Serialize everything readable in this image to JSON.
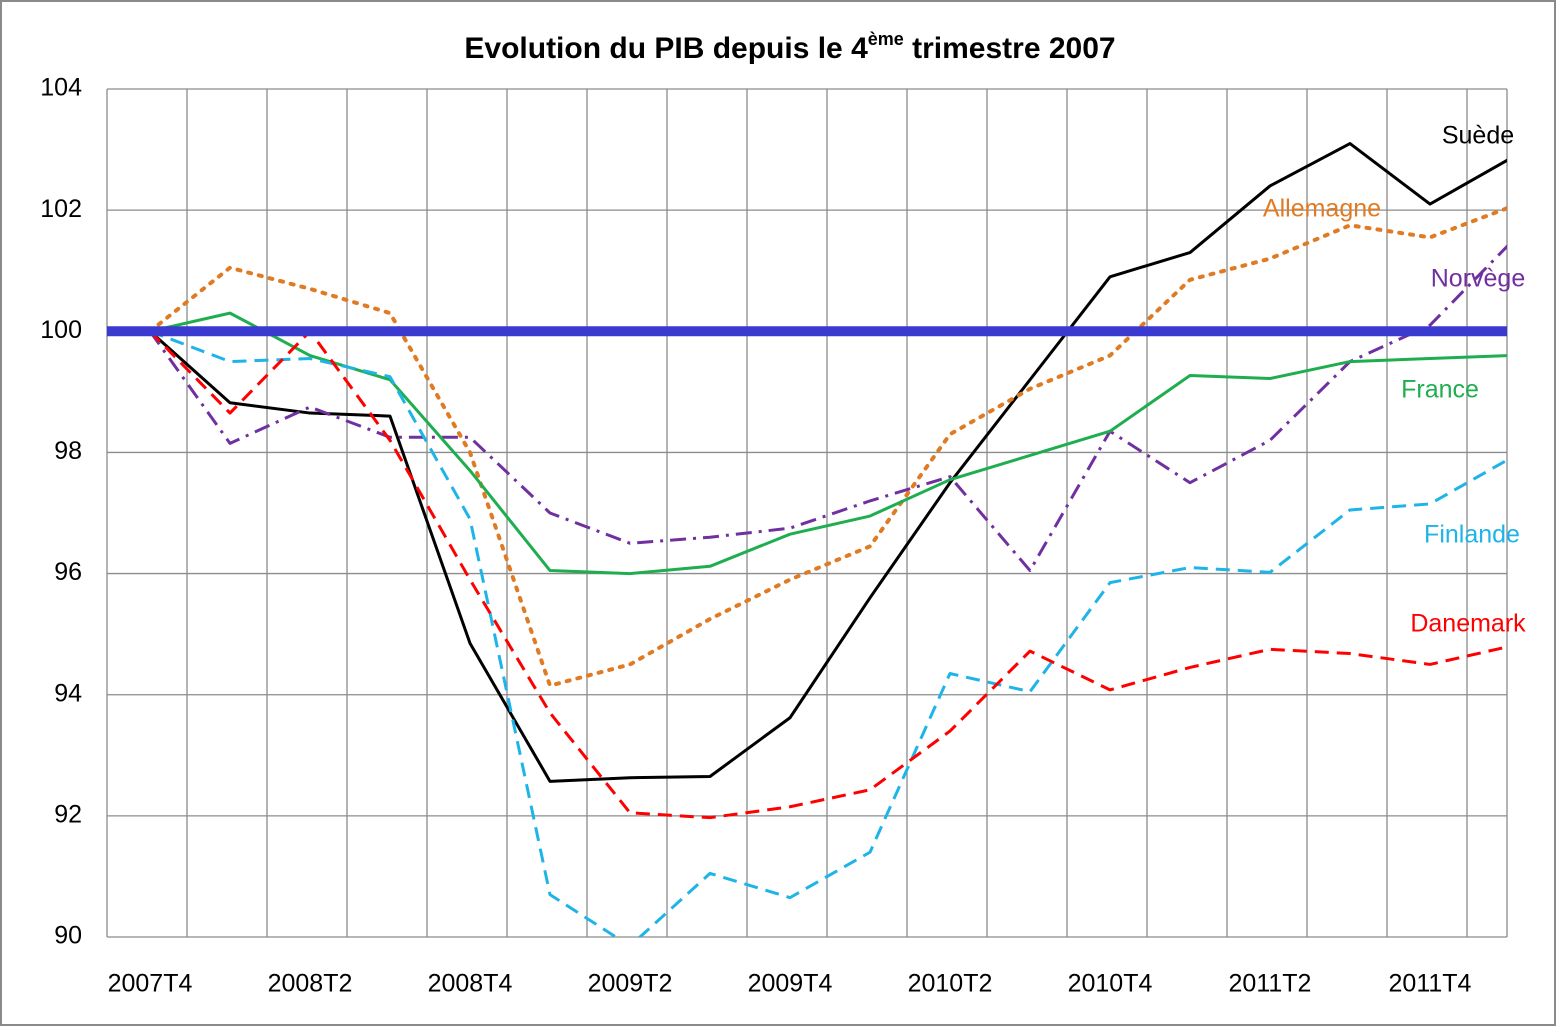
{
  "chart_data": {
    "type": "line",
    "title": [
      "Evolution du PIB depuis le 4",
      "ème",
      " trimestre 2007"
    ],
    "categories": [
      "2007T4",
      null,
      "2008T2",
      null,
      "2008T4",
      null,
      "2009T2",
      null,
      "2009T4",
      null,
      "2010T2",
      null,
      "2010T4",
      null,
      "2011T2",
      null,
      "2011T4",
      null
    ],
    "ylim": [
      90,
      104
    ],
    "yticks": [
      90,
      92,
      94,
      96,
      98,
      100,
      102,
      104
    ],
    "grid": true,
    "reference_line": {
      "value": 100,
      "color": "#3a3ad0"
    },
    "series": [
      {
        "name": "Suède",
        "color": "#000000",
        "dash": "solid",
        "values": [
          100,
          98.82,
          98.65,
          98.6,
          94.85,
          92.57,
          92.63,
          92.65,
          93.62,
          95.6,
          97.5,
          99.2,
          100.9,
          101.3,
          102.4,
          103.1,
          102.1,
          102.85
        ]
      },
      {
        "name": "Allemagne",
        "color": "#e07b24",
        "dash": "dot",
        "values": [
          100,
          101.05,
          100.7,
          100.3,
          98.0,
          94.15,
          94.5,
          95.25,
          95.9,
          96.45,
          98.3,
          99.05,
          99.6,
          100.85,
          101.2,
          101.75,
          101.55,
          102.05
        ]
      },
      {
        "name": "Norvège",
        "color": "#7030a0",
        "dash": "dashdot",
        "values": [
          100,
          98.15,
          98.75,
          98.25,
          98.25,
          97.0,
          96.5,
          96.6,
          96.75,
          97.2,
          97.6,
          96.05,
          98.35,
          97.5,
          98.2,
          99.5,
          100.1,
          101.45
        ]
      },
      {
        "name": "France",
        "color": "#1fae4f",
        "dash": "solid",
        "values": [
          100,
          100.3,
          99.6,
          99.2,
          97.7,
          96.05,
          96.0,
          96.12,
          96.65,
          96.95,
          97.55,
          97.95,
          98.35,
          99.27,
          99.22,
          99.5,
          99.55,
          99.6
        ]
      },
      {
        "name": "Finlande",
        "color": "#1eb4e8",
        "dash": "dash",
        "values": [
          100,
          99.5,
          99.55,
          99.25,
          96.9,
          90.7,
          89.85,
          91.05,
          90.65,
          91.4,
          94.35,
          94.05,
          95.85,
          96.1,
          96.02,
          97.05,
          97.15,
          97.9
        ]
      },
      {
        "name": "Danemark",
        "color": "#ff0000",
        "dash": "dash",
        "values": [
          100,
          98.65,
          100.0,
          98.2,
          95.9,
          93.7,
          92.05,
          91.97,
          92.15,
          92.43,
          93.4,
          94.72,
          94.08,
          94.45,
          94.75,
          94.68,
          94.5,
          94.8
        ]
      }
    ]
  }
}
